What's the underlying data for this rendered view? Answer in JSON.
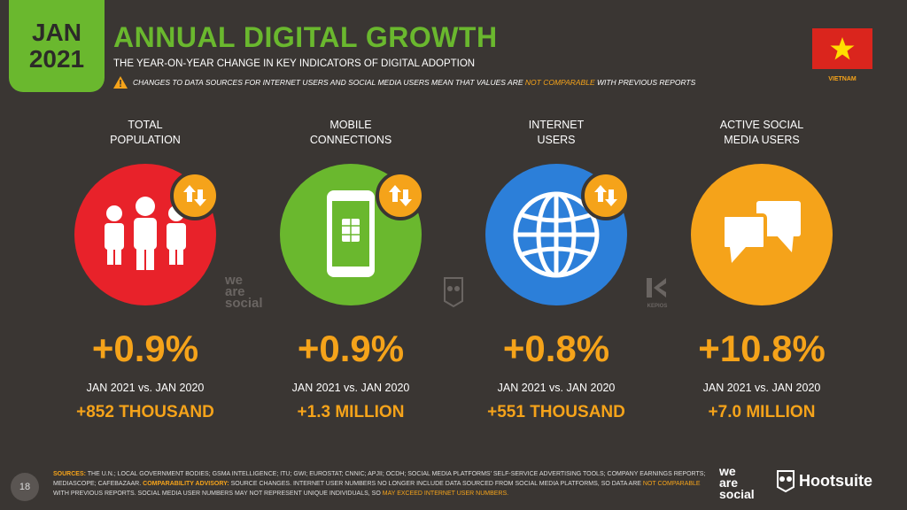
{
  "header": {
    "date_month": "JAN",
    "date_year": "2021",
    "title": "ANNUAL DIGITAL GROWTH",
    "subtitle": "THE YEAR-ON-YEAR CHANGE IN KEY INDICATORS OF DIGITAL ADOPTION",
    "warning_pre": "CHANGES TO DATA SOURCES FOR INTERNET USERS AND SOCIAL MEDIA USERS MEAN THAT VALUES ARE",
    "warning_hl": "NOT COMPARABLE",
    "warning_post": "WITH PREVIOUS REPORTS",
    "country": "VIETNAM",
    "flag_colors": {
      "field": "#da251d",
      "star": "#ffde00"
    }
  },
  "colors": {
    "accent": "#6ab82e",
    "orange": "#f5a31a",
    "red": "#e8222a",
    "green": "#6ab82e",
    "blue": "#2c7fd9",
    "bg": "#3a3633"
  },
  "metrics": [
    {
      "label_1": "TOTAL",
      "label_2": "POPULATION",
      "icon": "people-icon",
      "change_pct": "+0.9%",
      "comparison": "JAN 2021 vs. JAN 2020",
      "change_abs": "+852 THOUSAND"
    },
    {
      "label_1": "MOBILE",
      "label_2": "CONNECTIONS",
      "icon": "mobile-phone-icon",
      "change_pct": "+0.9%",
      "comparison": "JAN 2021 vs. JAN 2020",
      "change_abs": "+1.3 MILLION"
    },
    {
      "label_1": "INTERNET",
      "label_2": "USERS",
      "icon": "globe-icon",
      "change_pct": "+0.8%",
      "comparison": "JAN 2021 vs. JAN 2020",
      "change_abs": "+551 THOUSAND"
    },
    {
      "label_1": "ACTIVE SOCIAL",
      "label_2": "MEDIA USERS",
      "icon": "chat-bubbles-icon",
      "change_pct": "+10.8%",
      "comparison": "JAN 2021 vs. JAN 2020",
      "change_abs": "+7.0 MILLION"
    }
  ],
  "watermarks": {
    "we": "we",
    "are": "are",
    "social": "social",
    "kepios": "KEPIOS"
  },
  "footer": {
    "page_number": "18",
    "sources_label": "SOURCES:",
    "sources_text": "THE U.N.; LOCAL GOVERNMENT BODIES; GSMA INTELLIGENCE; ITU; GWI; EUROSTAT; CNNIC; APJII; OCDH; SOCIAL MEDIA PLATFORMS' SELF-SERVICE ADVERTISING TOOLS; COMPANY EARNINGS REPORTS; MEDIASCOPE; CAFEBAZAAR.",
    "advisory_label": "COMPARABILITY ADVISORY:",
    "advisory_text_1": "SOURCE CHANGES. INTERNET USER NUMBERS NO LONGER INCLUDE DATA SOURCED FROM SOCIAL MEDIA PLATFORMS, SO DATA ARE",
    "advisory_hl_1": "NOT COMPARABLE",
    "advisory_text_2": "WITH PREVIOUS REPORTS. SOCIAL MEDIA USER NUMBERS MAY NOT REPRESENT UNIQUE INDIVIDUALS, SO",
    "advisory_hl_2": "MAY EXCEED INTERNET USER NUMBERS.",
    "brand_we": "we",
    "brand_are": "are",
    "brand_social": "social",
    "brand_hootsuite": "Hootsuite"
  }
}
